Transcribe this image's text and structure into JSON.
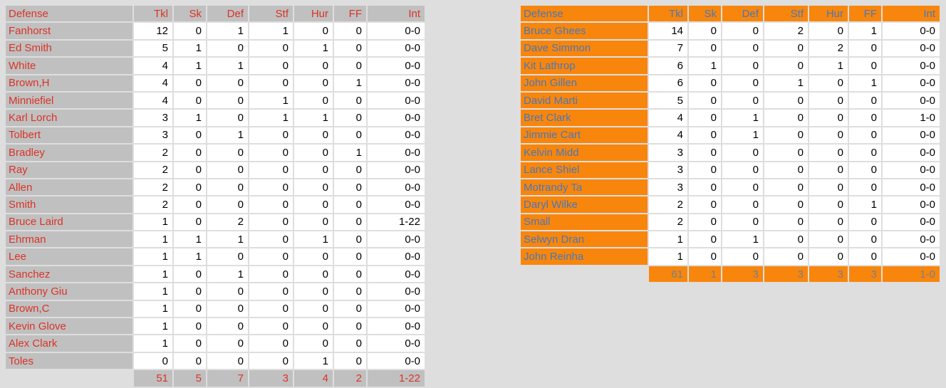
{
  "colors": {
    "page_bg": "#DEDEDE",
    "data_cell_bg": "#FFFFFF",
    "data_text": "#000000",
    "left_table": {
      "label_bg": "#C0C0C0",
      "label_text": "#DA3327"
    },
    "right_table": {
      "label_bg": "#F8860D",
      "label_text": "#4778BC",
      "totals_text": "#73808F"
    }
  },
  "columns": [
    "Defense",
    "Tkl",
    "Sk",
    "Def",
    "Stf",
    "Hur",
    "FF",
    "Int"
  ],
  "tables": {
    "left": {
      "rows": [
        [
          "Fanhorst",
          "12",
          "0",
          "1",
          "1",
          "0",
          "0",
          "0-0"
        ],
        [
          "Ed Smith",
          "5",
          "1",
          "0",
          "0",
          "1",
          "0",
          "0-0"
        ],
        [
          "White",
          "4",
          "1",
          "1",
          "0",
          "0",
          "0",
          "0-0"
        ],
        [
          "Brown,H",
          "4",
          "0",
          "0",
          "0",
          "0",
          "1",
          "0-0"
        ],
        [
          "Minniefiel",
          "4",
          "0",
          "0",
          "1",
          "0",
          "0",
          "0-0"
        ],
        [
          "Karl Lorch",
          "3",
          "1",
          "0",
          "1",
          "1",
          "0",
          "0-0"
        ],
        [
          "Tolbert",
          "3",
          "0",
          "1",
          "0",
          "0",
          "0",
          "0-0"
        ],
        [
          "Bradley",
          "2",
          "0",
          "0",
          "0",
          "0",
          "1",
          "0-0"
        ],
        [
          "Ray",
          "2",
          "0",
          "0",
          "0",
          "0",
          "0",
          "0-0"
        ],
        [
          "Allen",
          "2",
          "0",
          "0",
          "0",
          "0",
          "0",
          "0-0"
        ],
        [
          "Smith",
          "2",
          "0",
          "0",
          "0",
          "0",
          "0",
          "0-0"
        ],
        [
          "Bruce Laird",
          "1",
          "0",
          "2",
          "0",
          "0",
          "0",
          "1-22"
        ],
        [
          "Ehrman",
          "1",
          "1",
          "1",
          "0",
          "1",
          "0",
          "0-0"
        ],
        [
          "Lee",
          "1",
          "1",
          "0",
          "0",
          "0",
          "0",
          "0-0"
        ],
        [
          "Sanchez",
          "1",
          "0",
          "1",
          "0",
          "0",
          "0",
          "0-0"
        ],
        [
          "Anthony Giu",
          "1",
          "0",
          "0",
          "0",
          "0",
          "0",
          "0-0"
        ],
        [
          "Brown,C",
          "1",
          "0",
          "0",
          "0",
          "0",
          "0",
          "0-0"
        ],
        [
          "Kevin Glove",
          "1",
          "0",
          "0",
          "0",
          "0",
          "0",
          "0-0"
        ],
        [
          "Alex Clark",
          "1",
          "0",
          "0",
          "0",
          "0",
          "0",
          "0-0"
        ],
        [
          "Toles",
          "0",
          "0",
          "0",
          "0",
          "1",
          "0",
          "0-0"
        ]
      ],
      "totals": [
        "",
        "51",
        "5",
        "7",
        "3",
        "4",
        "2",
        "1-22"
      ]
    },
    "right": {
      "rows": [
        [
          "Bruce Ghees",
          "14",
          "0",
          "0",
          "2",
          "0",
          "1",
          "0-0"
        ],
        [
          "Dave Simmon",
          "7",
          "0",
          "0",
          "0",
          "2",
          "0",
          "0-0"
        ],
        [
          "Kit Lathrop",
          "6",
          "1",
          "0",
          "0",
          "1",
          "0",
          "0-0"
        ],
        [
          "John Gillen",
          "6",
          "0",
          "0",
          "1",
          "0",
          "1",
          "0-0"
        ],
        [
          "David Marti",
          "5",
          "0",
          "0",
          "0",
          "0",
          "0",
          "0-0"
        ],
        [
          "Bret Clark",
          "4",
          "0",
          "1",
          "0",
          "0",
          "0",
          "1-0"
        ],
        [
          "Jimmie Cart",
          "4",
          "0",
          "1",
          "0",
          "0",
          "0",
          "0-0"
        ],
        [
          "Kelvin Midd",
          "3",
          "0",
          "0",
          "0",
          "0",
          "0",
          "0-0"
        ],
        [
          "Lance Shiel",
          "3",
          "0",
          "0",
          "0",
          "0",
          "0",
          "0-0"
        ],
        [
          "Motrandy Ta",
          "3",
          "0",
          "0",
          "0",
          "0",
          "0",
          "0-0"
        ],
        [
          "Daryl Wilke",
          "2",
          "0",
          "0",
          "0",
          "0",
          "1",
          "0-0"
        ],
        [
          "Small",
          "2",
          "0",
          "0",
          "0",
          "0",
          "0",
          "0-0"
        ],
        [
          "Selwyn Dran",
          "1",
          "0",
          "1",
          "0",
          "0",
          "0",
          "0-0"
        ],
        [
          "John Reinha",
          "1",
          "0",
          "0",
          "0",
          "0",
          "0",
          "0-0"
        ]
      ],
      "totals": [
        "",
        "61",
        "1",
        "3",
        "3",
        "3",
        "3",
        "1-0"
      ]
    }
  }
}
